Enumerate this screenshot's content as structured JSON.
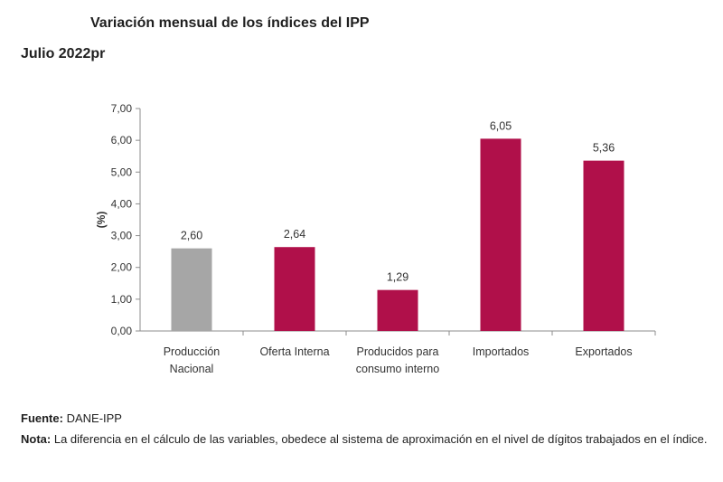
{
  "title": "Variación mensual de los índices del IPP",
  "subtitle": "Julio 2022pr",
  "footer": {
    "source_label": "Fuente:",
    "source_text": "DANE-IPP",
    "note_label": "Nota:",
    "note_text": "La diferencia en el cálculo de las variables, obedece al sistema de aproximación en el nivel de dígitos trabajados en el índice."
  },
  "colors": {
    "gray_bar": "#a6a6a6",
    "accent_bar": "#b0104a",
    "axis": "#8c8c8c"
  },
  "chart_data": {
    "type": "bar",
    "title": "Variación mensual de los índices del IPP",
    "subtitle": "Julio 2022pr",
    "xlabel": "",
    "ylabel": "(%)",
    "ylim": [
      0,
      7
    ],
    "yticks": [
      "0,00",
      "1,00",
      "2,00",
      "3,00",
      "4,00",
      "5,00",
      "6,00",
      "7,00"
    ],
    "grid": false,
    "categories": [
      [
        "Producción",
        "Nacional"
      ],
      [
        "Oferta Interna"
      ],
      [
        "Producidos para",
        "consumo interno"
      ],
      [
        "Importados"
      ],
      [
        "Exportados"
      ]
    ],
    "values": [
      2.6,
      2.64,
      1.29,
      6.05,
      5.36
    ],
    "value_labels": [
      "2,60",
      "2,64",
      "1,29",
      "6,05",
      "5,36"
    ],
    "bar_colors": [
      "gray",
      "accent",
      "accent",
      "accent",
      "accent"
    ]
  }
}
